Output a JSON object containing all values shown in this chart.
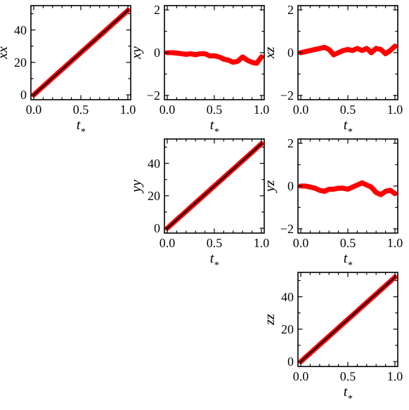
{
  "chart_data": [
    {
      "type": "line",
      "xlabel": "t$_{*}$",
      "ylabel": "xx",
      "xlim": [
        -0.03,
        1.03
      ],
      "ylim": [
        -3,
        55
      ],
      "xticks": [
        {
          "value": 0,
          "label": "0.0"
        },
        {
          "value": 0.1,
          "label": null
        },
        {
          "value": 0.2,
          "label": null
        },
        {
          "value": 0.3,
          "label": null
        },
        {
          "value": 0.4,
          "label": null
        },
        {
          "value": 0.5,
          "label": "0.5"
        },
        {
          "value": 0.6,
          "label": null
        },
        {
          "value": 0.7,
          "label": null
        },
        {
          "value": 0.8,
          "label": null
        },
        {
          "value": 0.9,
          "label": null
        },
        {
          "value": 1,
          "label": "1.0"
        }
      ],
      "yticks": [
        0,
        {
          "value": 10,
          "label": null
        },
        20,
        {
          "value": 30,
          "label": null
        },
        40,
        {
          "value": 50,
          "label": null
        }
      ],
      "grid": false,
      "line_style": "solid",
      "x": [
        0,
        0.25,
        0.5,
        0.75,
        1
      ],
      "series": [
        {
          "color": "#ff0000",
          "values": [
            0,
            13,
            26,
            39,
            52
          ]
        },
        {
          "color": "#000000",
          "values": [
            0,
            13,
            26,
            39,
            52
          ]
        }
      ]
    },
    {
      "type": "line",
      "xlabel": "t$_{*}$",
      "ylabel": "xy",
      "xlim": [
        -0.03,
        1.03
      ],
      "ylim": [
        -2.2,
        2.2
      ],
      "xticks": [
        {
          "value": 0,
          "label": "0.0"
        },
        {
          "value": 0.1,
          "label": null
        },
        {
          "value": 0.2,
          "label": null
        },
        {
          "value": 0.3,
          "label": null
        },
        {
          "value": 0.4,
          "label": null
        },
        {
          "value": 0.5,
          "label": "0.5"
        },
        {
          "value": 0.6,
          "label": null
        },
        {
          "value": 0.7,
          "label": null
        },
        {
          "value": 0.8,
          "label": null
        },
        {
          "value": 0.9,
          "label": null
        },
        {
          "value": 1,
          "label": "1.0"
        }
      ],
      "yticks": [
        {
          "value": -2,
          "label": "−2"
        },
        {
          "value": -1,
          "label": null
        },
        0,
        {
          "value": 1,
          "label": null
        },
        2
      ],
      "grid": false,
      "line_style": "solid",
      "x": [
        0,
        0.05,
        0.1,
        0.15,
        0.2,
        0.25,
        0.3,
        0.35,
        0.4,
        0.45,
        0.5,
        0.55,
        0.6,
        0.65,
        0.7,
        0.75,
        0.8,
        0.85,
        0.9,
        0.95,
        1
      ],
      "series": [
        {
          "color": "#ff0000",
          "values": [
            0,
            0,
            -0.02,
            -0.05,
            -0.08,
            -0.05,
            -0.1,
            -0.05,
            -0.05,
            -0.15,
            -0.15,
            -0.2,
            -0.3,
            -0.35,
            -0.45,
            -0.4,
            -0.2,
            -0.35,
            -0.45,
            -0.5,
            -0.2
          ]
        }
      ]
    },
    {
      "type": "line",
      "xlabel": "t$_{*}$",
      "ylabel": "xz",
      "xlim": [
        -0.03,
        1.03
      ],
      "ylim": [
        -2.2,
        2.2
      ],
      "xticks": [
        {
          "value": 0,
          "label": "0.0"
        },
        {
          "value": 0.1,
          "label": null
        },
        {
          "value": 0.2,
          "label": null
        },
        {
          "value": 0.3,
          "label": null
        },
        {
          "value": 0.4,
          "label": null
        },
        {
          "value": 0.5,
          "label": "0.5"
        },
        {
          "value": 0.6,
          "label": null
        },
        {
          "value": 0.7,
          "label": null
        },
        {
          "value": 0.8,
          "label": null
        },
        {
          "value": 0.9,
          "label": null
        },
        {
          "value": 1,
          "label": "1.0"
        }
      ],
      "yticks": [
        {
          "value": -2,
          "label": "−2"
        },
        {
          "value": -1,
          "label": null
        },
        0,
        {
          "value": 1,
          "label": null
        },
        2
      ],
      "grid": false,
      "line_style": "solid",
      "x": [
        0,
        0.05,
        0.1,
        0.15,
        0.2,
        0.25,
        0.3,
        0.35,
        0.4,
        0.45,
        0.5,
        0.55,
        0.6,
        0.65,
        0.7,
        0.75,
        0.8,
        0.85,
        0.9,
        0.95,
        1
      ],
      "series": [
        {
          "color": "#ff0000",
          "values": [
            0,
            0.05,
            0.1,
            0.15,
            0.2,
            0.25,
            0.15,
            -0.1,
            0,
            0.1,
            0.15,
            0.1,
            0.2,
            0.1,
            0.2,
            0,
            0.2,
            0.15,
            -0.05,
            0.1,
            0.3
          ]
        }
      ]
    },
    {
      "type": "line",
      "xlabel": "t$_{*}$",
      "ylabel": "yy",
      "xlim": [
        -0.03,
        1.03
      ],
      "ylim": [
        -3,
        55
      ],
      "xticks": [
        {
          "value": 0,
          "label": "0.0"
        },
        {
          "value": 0.1,
          "label": null
        },
        {
          "value": 0.2,
          "label": null
        },
        {
          "value": 0.3,
          "label": null
        },
        {
          "value": 0.4,
          "label": null
        },
        {
          "value": 0.5,
          "label": "0.5"
        },
        {
          "value": 0.6,
          "label": null
        },
        {
          "value": 0.7,
          "label": null
        },
        {
          "value": 0.8,
          "label": null
        },
        {
          "value": 0.9,
          "label": null
        },
        {
          "value": 1,
          "label": "1.0"
        }
      ],
      "yticks": [
        0,
        {
          "value": 10,
          "label": null
        },
        20,
        {
          "value": 30,
          "label": null
        },
        40,
        {
          "value": 50,
          "label": null
        }
      ],
      "grid": false,
      "line_style": "solid",
      "x": [
        0,
        0.25,
        0.5,
        0.75,
        1
      ],
      "series": [
        {
          "color": "#ff0000",
          "values": [
            0,
            13,
            26,
            39,
            52
          ]
        },
        {
          "color": "#000000",
          "values": [
            0,
            13,
            26,
            39,
            52
          ]
        }
      ]
    },
    {
      "type": "line",
      "xlabel": "t$_{*}$",
      "ylabel": "yz",
      "xlim": [
        -0.03,
        1.03
      ],
      "ylim": [
        -2.2,
        2.2
      ],
      "xticks": [
        {
          "value": 0,
          "label": "0.0"
        },
        {
          "value": 0.1,
          "label": null
        },
        {
          "value": 0.2,
          "label": null
        },
        {
          "value": 0.3,
          "label": null
        },
        {
          "value": 0.4,
          "label": null
        },
        {
          "value": 0.5,
          "label": "0.5"
        },
        {
          "value": 0.6,
          "label": null
        },
        {
          "value": 0.7,
          "label": null
        },
        {
          "value": 0.8,
          "label": null
        },
        {
          "value": 0.9,
          "label": null
        },
        {
          "value": 1,
          "label": "1.0"
        }
      ],
      "yticks": [
        {
          "value": -2,
          "label": "−2"
        },
        {
          "value": -1,
          "label": null
        },
        0,
        {
          "value": 1,
          "label": null
        },
        2
      ],
      "grid": false,
      "line_style": "solid",
      "x": [
        0,
        0.05,
        0.1,
        0.15,
        0.2,
        0.25,
        0.3,
        0.35,
        0.4,
        0.45,
        0.5,
        0.55,
        0.6,
        0.65,
        0.7,
        0.75,
        0.8,
        0.85,
        0.9,
        0.95,
        1
      ],
      "series": [
        {
          "color": "#ff0000",
          "values": [
            0,
            0,
            -0.05,
            -0.1,
            -0.2,
            -0.25,
            -0.15,
            -0.15,
            -0.1,
            -0.1,
            -0.15,
            -0.05,
            0.05,
            0.15,
            0.05,
            -0.05,
            -0.3,
            -0.4,
            -0.25,
            -0.2,
            -0.35
          ]
        }
      ]
    },
    {
      "type": "line",
      "xlabel": "t$_{*}$",
      "ylabel": "zz",
      "xlim": [
        -0.03,
        1.03
      ],
      "ylim": [
        -3,
        55
      ],
      "xticks": [
        {
          "value": 0,
          "label": "0.0"
        },
        {
          "value": 0.1,
          "label": null
        },
        {
          "value": 0.2,
          "label": null
        },
        {
          "value": 0.3,
          "label": null
        },
        {
          "value": 0.4,
          "label": null
        },
        {
          "value": 0.5,
          "label": "0.5"
        },
        {
          "value": 0.6,
          "label": null
        },
        {
          "value": 0.7,
          "label": null
        },
        {
          "value": 0.8,
          "label": null
        },
        {
          "value": 0.9,
          "label": null
        },
        {
          "value": 1,
          "label": "1.0"
        }
      ],
      "yticks": [
        0,
        {
          "value": 10,
          "label": null
        },
        20,
        {
          "value": 30,
          "label": null
        },
        40,
        {
          "value": 50,
          "label": null
        }
      ],
      "grid": false,
      "line_style": "solid",
      "x": [
        0,
        0.25,
        0.5,
        0.75,
        1
      ],
      "series": [
        {
          "color": "#ff0000",
          "values": [
            0,
            13,
            26,
            39,
            52
          ]
        },
        {
          "color": "#000000",
          "values": [
            0,
            13,
            26,
            39,
            52
          ]
        }
      ]
    }
  ]
}
